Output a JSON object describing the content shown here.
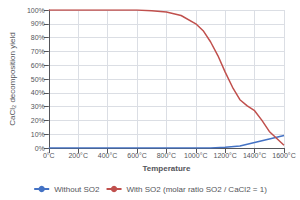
{
  "chart_data": {
    "type": "line",
    "xlabel": "Temperature",
    "ylabel": "CaCl₂ decomposition yield",
    "xlim": [
      0,
      1600
    ],
    "ylim": [
      0,
      100
    ],
    "xticks": [
      {
        "value": 0,
        "label": "0°C"
      },
      {
        "value": 200,
        "label": "200°C"
      },
      {
        "value": 400,
        "label": "400°C"
      },
      {
        "value": 600,
        "label": "600°C"
      },
      {
        "value": 800,
        "label": "800°C"
      },
      {
        "value": 1000,
        "label": "1000°C"
      },
      {
        "value": 1200,
        "label": "1200°C"
      },
      {
        "value": 1400,
        "label": "1400°C"
      },
      {
        "value": 1600,
        "label": "1600°C"
      }
    ],
    "yticks": [
      {
        "value": 0,
        "label": "0%"
      },
      {
        "value": 10,
        "label": "10%"
      },
      {
        "value": 20,
        "label": "20%"
      },
      {
        "value": 30,
        "label": "30%"
      },
      {
        "value": 40,
        "label": "40%"
      },
      {
        "value": 50,
        "label": "50%"
      },
      {
        "value": 60,
        "label": "60%"
      },
      {
        "value": 70,
        "label": "70%"
      },
      {
        "value": 80,
        "label": "80%"
      },
      {
        "value": 90,
        "label": "90%"
      },
      {
        "value": 100,
        "label": "100%"
      }
    ],
    "grid": true,
    "legend": "bottom",
    "series": [
      {
        "name": "Without SO2",
        "color": "#4472c4",
        "x": [
          0,
          200,
          400,
          600,
          800,
          1000,
          1100,
          1200,
          1300,
          1400,
          1500,
          1600
        ],
        "values": [
          0.0,
          0.0,
          0.0,
          0.0,
          0.0,
          0.0,
          0.0,
          0.5,
          1.5,
          4.0,
          6.5,
          9.0
        ]
      },
      {
        "name": "With SO2 (molar ratio SO2 / CaCl2 = 1)",
        "color": "#c0504d",
        "x": [
          0,
          100,
          200,
          300,
          400,
          500,
          600,
          700,
          800,
          900,
          1000,
          1050,
          1100,
          1150,
          1200,
          1250,
          1300,
          1350,
          1400,
          1450,
          1500,
          1600
        ],
        "values": [
          100,
          100,
          100,
          100,
          100,
          100,
          100,
          99.5,
          98.5,
          96.0,
          90.0,
          85.0,
          77.0,
          67.0,
          55.0,
          44.0,
          35.0,
          30.5,
          27.0,
          20.0,
          12.0,
          2.0
        ]
      }
    ]
  }
}
